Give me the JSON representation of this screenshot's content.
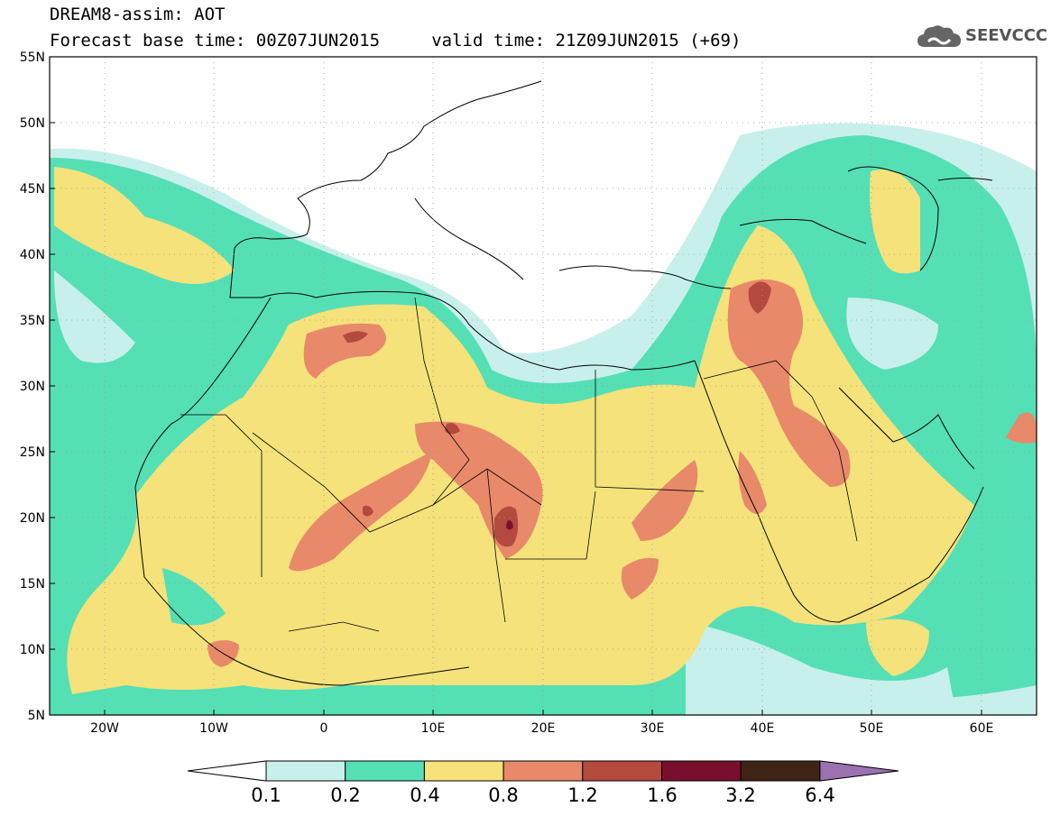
{
  "title": {
    "line1": "DREAM8-assim: AOT",
    "line2": "Forecast base time: 00Z07JUN2015     valid time: 21Z09JUN2015 (+69)"
  },
  "logo": {
    "text": "SEEVCCC",
    "icon": "cloud-logo-icon"
  },
  "map": {
    "lon_range": [
      -25,
      65
    ],
    "lat_range": [
      5,
      55
    ],
    "lat_labels": [
      "55N",
      "50N",
      "45N",
      "40N",
      "35N",
      "30N",
      "25N",
      "20N",
      "15N",
      "10N",
      "5N"
    ],
    "lon_labels": [
      "20W",
      "10W",
      "0",
      "10E",
      "20E",
      "30E",
      "40E",
      "50E",
      "60E"
    ],
    "grid": "dotted"
  },
  "legend": {
    "levels": [
      "0.1",
      "0.2",
      "0.4",
      "0.8",
      "1.2",
      "1.6",
      "3.2",
      "6.4"
    ],
    "colors": [
      "#ffffff",
      "#c8f0ea",
      "#55dfb5",
      "#f5e27a",
      "#e8896a",
      "#b4493e",
      "#7a0f2d",
      "#3d2415",
      "#9b71b0"
    ]
  },
  "colors": {
    "c1": "#c8f0ea",
    "c2": "#55dfb5",
    "c3": "#f5e27a",
    "c4": "#e8896a",
    "c5": "#b4493e",
    "c6": "#7a0f2d",
    "c7": "#3d2415"
  }
}
